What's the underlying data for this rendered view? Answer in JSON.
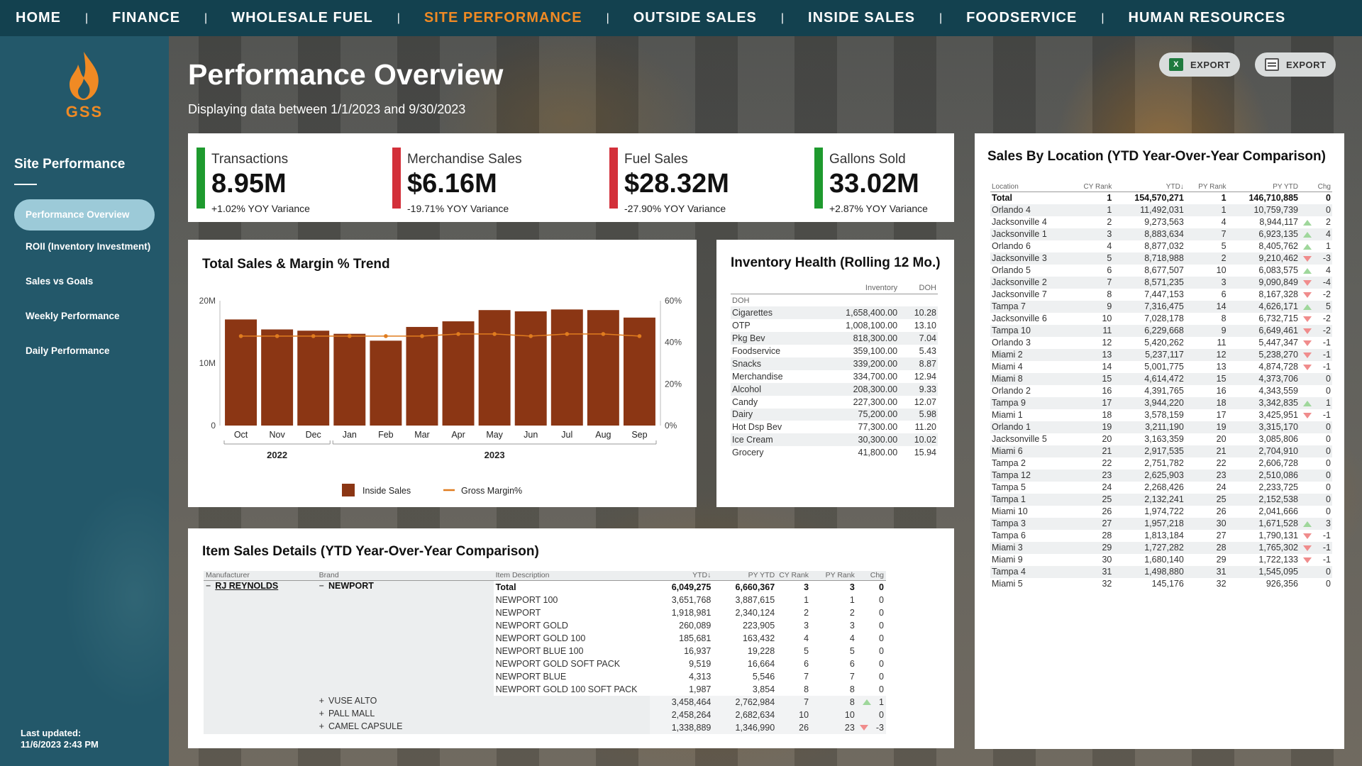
{
  "nav": {
    "items": [
      "HOME",
      "FINANCE",
      "WHOLESALE FUEL",
      "SITE PERFORMANCE",
      "OUTSIDE SALES",
      "INSIDE SALES",
      "FOODSERVICE",
      "HUMAN RESOURCES"
    ],
    "active_index": 3
  },
  "sidebar": {
    "logo_text": "GSS",
    "section_title": "Site Performance",
    "items": [
      "Performance Overview",
      "ROII (Inventory Investment)",
      "Sales vs Goals",
      "Weekly Performance",
      "Daily Performance"
    ],
    "active_index": 0,
    "last_updated_label": "Last updated:",
    "last_updated_value": "11/6/2023 2:43 PM"
  },
  "header": {
    "title": "Performance Overview",
    "subtitle": "Displaying data between 1/1/2023 and 9/30/2023",
    "export_excel": "EXPORT",
    "export_pdf": "EXPORT"
  },
  "kpis": [
    {
      "label": "Transactions",
      "value": "8.95M",
      "variance": "+1.02% YOY Variance",
      "color": "#1e9a2e"
    },
    {
      "label": "Merchandise Sales",
      "value": "$6.16M",
      "variance": "-19.71% YOY Variance",
      "color": "#d3303a"
    },
    {
      "label": "Fuel Sales",
      "value": "$28.32M",
      "variance": "-27.90% YOY Variance",
      "color": "#d3303a"
    },
    {
      "label": "Gallons Sold",
      "value": "33.02M",
      "variance": "+2.87% YOY Variance",
      "color": "#1e9a2e"
    }
  ],
  "trend": {
    "title": "Total Sales & Margin % Trend"
  },
  "chart_data": {
    "type": "bar",
    "title": "Total Sales & Margin % Trend",
    "categories": [
      "Oct",
      "Nov",
      "Dec",
      "Jan",
      "Feb",
      "Mar",
      "Apr",
      "May",
      "Jun",
      "Jul",
      "Aug",
      "Sep"
    ],
    "year_groups": [
      {
        "label": "2022",
        "count": 3
      },
      {
        "label": "2023",
        "count": 9
      }
    ],
    "series": [
      {
        "name": "Inside Sales",
        "axis": "left",
        "color": "#8b3614",
        "values": [
          17000000,
          15400000,
          15200000,
          14700000,
          13600000,
          15800000,
          16700000,
          18500000,
          18300000,
          18600000,
          18500000,
          17300000
        ]
      },
      {
        "name": "Gross Margin%",
        "axis": "right",
        "type": "line",
        "color": "#e07c1f",
        "values": [
          43,
          43,
          43,
          43,
          43,
          43,
          44,
          44,
          43,
          44,
          44,
          43
        ]
      }
    ],
    "y_left_ticks": [
      "0",
      "10M",
      "20M"
    ],
    "y_left_range": [
      0,
      20000000
    ],
    "y_right_ticks": [
      "0%",
      "20%",
      "40%",
      "60%"
    ],
    "y_right_range": [
      0,
      60
    ],
    "legend_position": "bottom"
  },
  "inventory": {
    "title": "Inventory Health (Rolling 12 Mo.)",
    "col_inventory": "Inventory",
    "col_doh": "DOH",
    "col_first": "DOH",
    "rows": [
      [
        "Cigarettes",
        "1,658,400.00",
        "10.28"
      ],
      [
        "OTP",
        "1,008,100.00",
        "13.10"
      ],
      [
        "Pkg Bev",
        "818,300.00",
        "7.04"
      ],
      [
        "Foodservice",
        "359,100.00",
        "5.43"
      ],
      [
        "Snacks",
        "339,200.00",
        "8.87"
      ],
      [
        "Merchandise",
        "334,700.00",
        "12.94"
      ],
      [
        "Alcohol",
        "208,300.00",
        "9.33"
      ],
      [
        "Candy",
        "227,300.00",
        "12.07"
      ],
      [
        "Dairy",
        "75,200.00",
        "5.98"
      ],
      [
        "Hot Dsp Bev",
        "77,300.00",
        "11.20"
      ],
      [
        "Ice Cream",
        "30,300.00",
        "10.02"
      ],
      [
        "Grocery",
        "41,800.00",
        "15.94"
      ]
    ]
  },
  "locations": {
    "title": "Sales By Location (YTD Year-Over-Year Comparison)",
    "headers": [
      "Location",
      "CY Rank",
      "YTD↓",
      "PY Rank",
      "PY YTD",
      "Chg"
    ],
    "total": [
      "Total",
      "1",
      "154,570,271",
      "1",
      "146,710,885",
      "0"
    ],
    "rows": [
      [
        "Orlando 4",
        "1",
        "11,492,031",
        "1",
        "10,759,739",
        "",
        "0"
      ],
      [
        "Jacksonville 4",
        "2",
        "9,273,563",
        "4",
        "8,944,117",
        "up",
        "2"
      ],
      [
        "Jacksonville 1",
        "3",
        "8,883,634",
        "7",
        "6,923,135",
        "up",
        "4"
      ],
      [
        "Orlando 6",
        "4",
        "8,877,032",
        "5",
        "8,405,762",
        "up",
        "1"
      ],
      [
        "Jacksonville 3",
        "5",
        "8,718,988",
        "2",
        "9,210,462",
        "down",
        "-3"
      ],
      [
        "Orlando 5",
        "6",
        "8,677,507",
        "10",
        "6,083,575",
        "up",
        "4"
      ],
      [
        "Jacksonville 2",
        "7",
        "8,571,235",
        "3",
        "9,090,849",
        "down",
        "-4"
      ],
      [
        "Jacksonville 7",
        "8",
        "7,447,153",
        "6",
        "8,167,328",
        "down",
        "-2"
      ],
      [
        "Tampa 7",
        "9",
        "7,316,475",
        "14",
        "4,626,171",
        "up",
        "5"
      ],
      [
        "Jacksonville 6",
        "10",
        "7,028,178",
        "8",
        "6,732,715",
        "down",
        "-2"
      ],
      [
        "Tampa 10",
        "11",
        "6,229,668",
        "9",
        "6,649,461",
        "down",
        "-2"
      ],
      [
        "Orlando 3",
        "12",
        "5,420,262",
        "11",
        "5,447,347",
        "down",
        "-1"
      ],
      [
        "Miami 2",
        "13",
        "5,237,117",
        "12",
        "5,238,270",
        "down",
        "-1"
      ],
      [
        "Miami 4",
        "14",
        "5,001,775",
        "13",
        "4,874,728",
        "down",
        "-1"
      ],
      [
        "Miami 8",
        "15",
        "4,614,472",
        "15",
        "4,373,706",
        "",
        "0"
      ],
      [
        "Orlando 2",
        "16",
        "4,391,765",
        "16",
        "4,343,559",
        "",
        "0"
      ],
      [
        "Tampa 9",
        "17",
        "3,944,220",
        "18",
        "3,342,835",
        "up",
        "1"
      ],
      [
        "Miami 1",
        "18",
        "3,578,159",
        "17",
        "3,425,951",
        "down",
        "-1"
      ],
      [
        "Orlando 1",
        "19",
        "3,211,190",
        "19",
        "3,315,170",
        "",
        "0"
      ],
      [
        "Jacksonville 5",
        "20",
        "3,163,359",
        "20",
        "3,085,806",
        "",
        "0"
      ],
      [
        "Miami 6",
        "21",
        "2,917,535",
        "21",
        "2,704,910",
        "",
        "0"
      ],
      [
        "Tampa 2",
        "22",
        "2,751,782",
        "22",
        "2,606,728",
        "",
        "0"
      ],
      [
        "Tampa 12",
        "23",
        "2,625,903",
        "23",
        "2,510,086",
        "",
        "0"
      ],
      [
        "Tampa 5",
        "24",
        "2,268,426",
        "24",
        "2,233,725",
        "",
        "0"
      ],
      [
        "Tampa 1",
        "25",
        "2,132,241",
        "25",
        "2,152,538",
        "",
        "0"
      ],
      [
        "Miami 10",
        "26",
        "1,974,722",
        "26",
        "2,041,666",
        "",
        "0"
      ],
      [
        "Tampa 3",
        "27",
        "1,957,218",
        "30",
        "1,671,528",
        "up",
        "3"
      ],
      [
        "Tampa 6",
        "28",
        "1,813,184",
        "27",
        "1,790,131",
        "down",
        "-1"
      ],
      [
        "Miami 3",
        "29",
        "1,727,282",
        "28",
        "1,765,302",
        "down",
        "-1"
      ],
      [
        "Miami 9",
        "30",
        "1,680,140",
        "29",
        "1,722,133",
        "down",
        "-1"
      ],
      [
        "Tampa 4",
        "31",
        "1,498,880",
        "31",
        "1,545,095",
        "",
        "0"
      ],
      [
        "Miami 5",
        "32",
        "145,176",
        "32",
        "926,356",
        "",
        "0"
      ]
    ]
  },
  "items": {
    "title": "Item Sales Details (YTD Year-Over-Year Comparison)",
    "headers": [
      "Manufacturer",
      "Brand",
      "Item Description",
      "YTD↓",
      "PY YTD",
      "CY Rank",
      "PY Rank",
      "Chg"
    ],
    "manufacturer": "RJ REYNOLDS",
    "brand": "NEWPORT",
    "collapse_glyph": "−",
    "expand_glyph": "+",
    "total": [
      "Total",
      "6,049,275",
      "6,660,367",
      "3",
      "3",
      "0"
    ],
    "rows": [
      [
        "NEWPORT 100",
        "3,651,768",
        "3,887,615",
        "1",
        "1",
        "",
        "0"
      ],
      [
        "NEWPORT",
        "1,918,981",
        "2,340,124",
        "2",
        "2",
        "",
        "0"
      ],
      [
        "NEWPORT GOLD",
        "260,089",
        "223,905",
        "3",
        "3",
        "",
        "0"
      ],
      [
        "NEWPORT GOLD 100",
        "185,681",
        "163,432",
        "4",
        "4",
        "",
        "0"
      ],
      [
        "NEWPORT BLUE 100",
        "16,937",
        "19,228",
        "5",
        "5",
        "",
        "0"
      ],
      [
        "NEWPORT GOLD SOFT PACK",
        "9,519",
        "16,664",
        "6",
        "6",
        "",
        "0"
      ],
      [
        "NEWPORT BLUE",
        "4,313",
        "5,546",
        "7",
        "7",
        "",
        "0"
      ],
      [
        "NEWPORT GOLD 100 SOFT PACK",
        "1,987",
        "3,854",
        "8",
        "8",
        "",
        "0"
      ]
    ],
    "brands": [
      [
        "VUSE ALTO",
        "3,458,464",
        "2,762,984",
        "7",
        "8",
        "up",
        "1"
      ],
      [
        "PALL MALL",
        "2,458,264",
        "2,682,634",
        "10",
        "10",
        "",
        "0"
      ],
      [
        "CAMEL CAPSULE",
        "1,338,889",
        "1,346,990",
        "26",
        "23",
        "down",
        "-3"
      ]
    ]
  }
}
